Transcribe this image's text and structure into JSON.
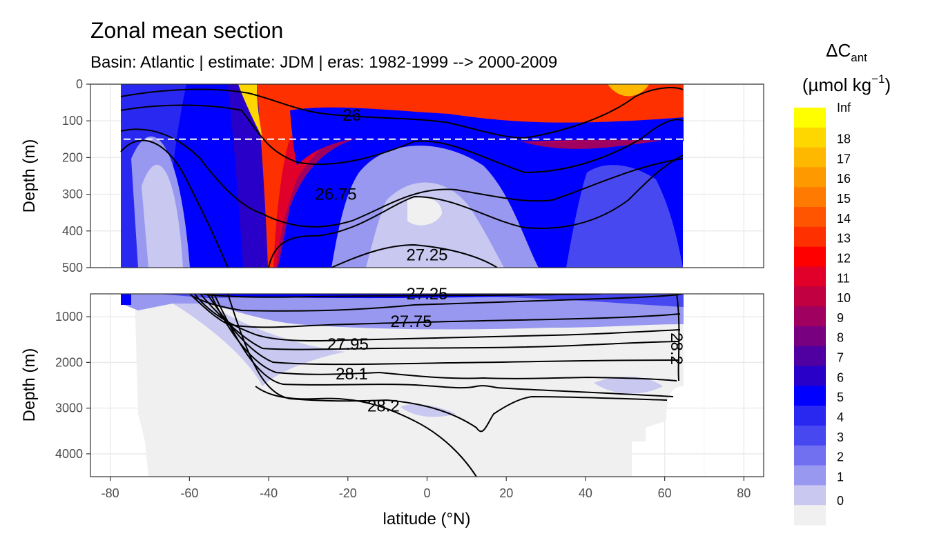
{
  "chart_data": {
    "type": "heatmap",
    "title": "Zonal mean section",
    "subtitle": "Basin: Atlantic | estimate: JDM  | eras: 1982-1999 --> 2000-2009",
    "xlabel": "latitude (°N)",
    "x_ticks": [
      -80,
      -60,
      -40,
      -20,
      0,
      20,
      40,
      60,
      80
    ],
    "xlim": [
      -85,
      85
    ],
    "panels": [
      {
        "name": "upper",
        "ylabel": "Depth (m)",
        "ylim": [
          0,
          500
        ],
        "y_ticks": [
          0,
          100,
          200,
          300,
          400,
          500
        ]
      },
      {
        "name": "lower",
        "ylabel": "Depth (m)",
        "ylim": [
          500,
          4500
        ],
        "y_ticks": [
          1000,
          2000,
          3000,
          4000
        ]
      }
    ],
    "legend": {
      "title_main": "ΔC",
      "title_sub": "ant",
      "unit_main": "(µmol kg",
      "unit_sup": "−1",
      "unit_close": ")",
      "labels": [
        "Inf",
        "18",
        "17",
        "16",
        "15",
        "14",
        "13",
        "12",
        "11",
        "10",
        "9",
        "8",
        "7",
        "6",
        "5",
        "4",
        "3",
        "2",
        "1",
        "0"
      ],
      "colors": [
        "#FFFF00",
        "#FFD700",
        "#FFB800",
        "#FF9900",
        "#FF7A00",
        "#FF5500",
        "#FF3000",
        "#FF0000",
        "#E0002A",
        "#C00040",
        "#A00060",
        "#780080",
        "#5000A0",
        "#2800C8",
        "#0000FF",
        "#2828F0",
        "#4848F0",
        "#7070F0",
        "#9898F0",
        "#C8C8F0",
        "#F0F0F0"
      ]
    },
    "reference_line_depth": 150,
    "contour_labels": [
      {
        "text": "26",
        "lat": -19,
        "depth": 85,
        "panel": "upper"
      },
      {
        "text": "26.75",
        "lat": -23,
        "depth": 300,
        "panel": "upper"
      },
      {
        "text": "27.25",
        "lat": 0,
        "depth": 465,
        "panel": "upper"
      },
      {
        "text": "27.25",
        "lat": 0,
        "depth": 500,
        "panel": "lower"
      },
      {
        "text": "27.75",
        "lat": -4,
        "depth": 1100,
        "panel": "lower"
      },
      {
        "text": "27.95",
        "lat": -20,
        "depth": 1600,
        "panel": "lower"
      },
      {
        "text": "28.1",
        "lat": -19,
        "depth": 2250,
        "panel": "lower"
      },
      {
        "text": "28.2",
        "lat": -11,
        "depth": 2950,
        "panel": "lower"
      },
      {
        "text": "28.2",
        "lat": 63,
        "depth": 1700,
        "panel": "lower"
      }
    ]
  }
}
